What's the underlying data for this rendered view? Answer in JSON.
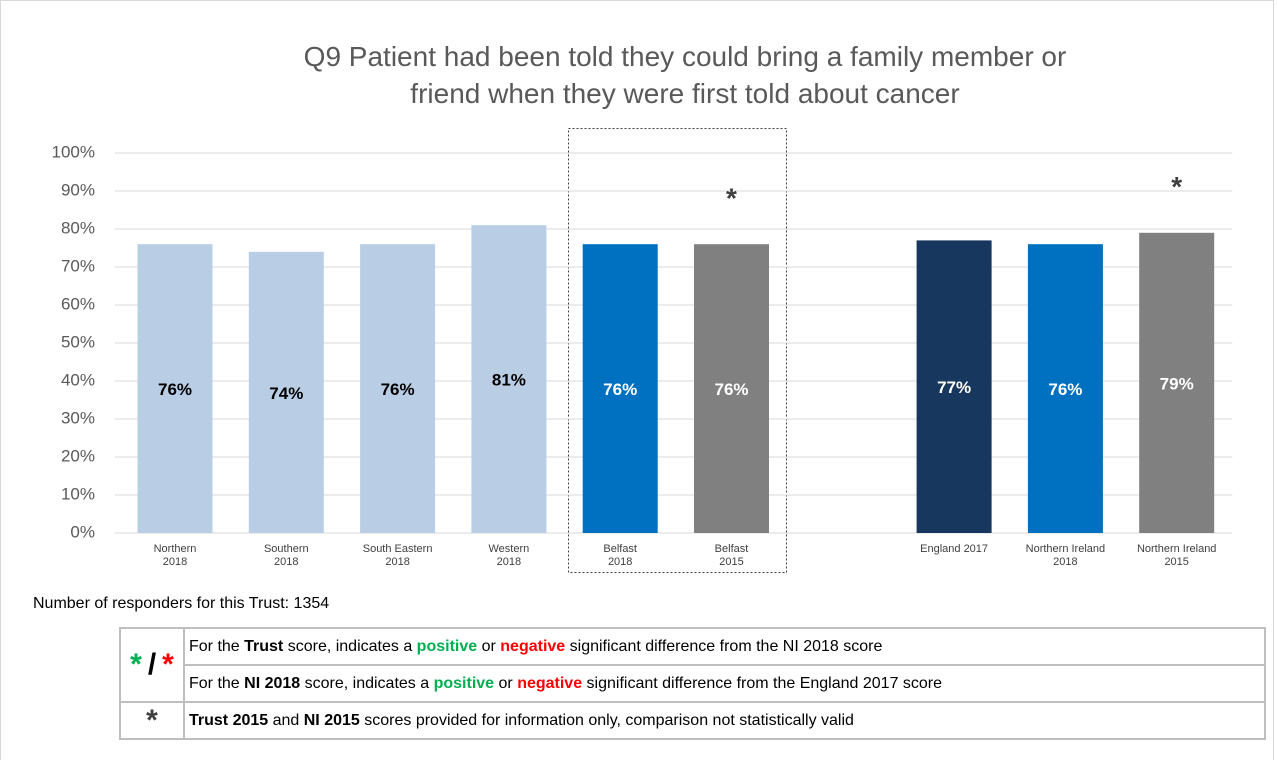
{
  "chart_data": {
    "type": "bar",
    "title": "Q9 Patient had been told they could bring a family member or\nfriend when they were first told about cancer",
    "categories": [
      "Northern\n2018",
      "Southern\n2018",
      "South Eastern\n2018",
      "Western\n2018",
      "Belfast\n2018",
      "Belfast\n2015",
      null,
      "England 2017",
      "Northern Ireland\n2018",
      "Northern Ireland\n2015"
    ],
    "values": [
      76,
      74,
      76,
      81,
      76,
      76,
      null,
      77,
      76,
      79
    ],
    "value_labels": [
      "76%",
      "74%",
      "76%",
      "81%",
      "76%",
      "76%",
      null,
      "77%",
      "76%",
      "79%"
    ],
    "colors": [
      "#b9cde5",
      "#b9cde5",
      "#b9cde5",
      "#b9cde5",
      "#0070c0",
      "#808080",
      null,
      "#17375e",
      "#0070c0",
      "#808080"
    ],
    "label_colors": [
      "#000000",
      "#000000",
      "#000000",
      "#000000",
      "#ffffff",
      "#ffffff",
      null,
      "#ffffff",
      "#ffffff",
      "#ffffff"
    ],
    "annotations": [
      null,
      null,
      null,
      null,
      null,
      "*",
      null,
      null,
      null,
      "*"
    ],
    "ylim": [
      0,
      100
    ],
    "yticks": [
      {
        "value": 0,
        "label": "0%"
      },
      {
        "value": 10,
        "label": "10%"
      },
      {
        "value": 20,
        "label": "20%"
      },
      {
        "value": 30,
        "label": "30%"
      },
      {
        "value": 40,
        "label": "40%"
      },
      {
        "value": 50,
        "label": "50%"
      },
      {
        "value": 60,
        "label": "60%"
      },
      {
        "value": 70,
        "label": "70%"
      },
      {
        "value": 80,
        "label": "80%"
      },
      {
        "value": 90,
        "label": "90%"
      },
      {
        "value": 100,
        "label": "100%"
      }
    ],
    "grid": true
  },
  "footer": "Number of responders for this Trust: 1354",
  "info_table": {
    "rows": [
      {
        "symbol": [
          {
            "text": "*",
            "color": "#00b050"
          },
          {
            "text": "/",
            "color": "#000000"
          },
          {
            "text": "*",
            "color": "#ff0000"
          }
        ],
        "lines": [
          [
            {
              "text": "For the "
            },
            {
              "text": "Trust",
              "bold": true
            },
            {
              "text": " score, indicates a "
            },
            {
              "text": "positive",
              "bold": true,
              "color": "#00b050"
            },
            {
              "text": " or "
            },
            {
              "text": "negative",
              "bold": true,
              "color": "#ff0000"
            },
            {
              "text": " significant difference from the NI 2018 score"
            }
          ],
          [
            {
              "text": "For the "
            },
            {
              "text": "NI 2018",
              "bold": true
            },
            {
              "text": " score, indicates a "
            },
            {
              "text": "positive",
              "bold": true,
              "color": "#00b050"
            },
            {
              "text": " or "
            },
            {
              "text": "negative",
              "bold": true,
              "color": "#ff0000"
            },
            {
              "text": " significant difference from the England 2017 score"
            }
          ]
        ]
      },
      {
        "symbol": [
          {
            "text": "*",
            "color": "#404040"
          }
        ],
        "lines": [
          [
            {
              "text": "Trust 2015",
              "bold": true
            },
            {
              "text": " and  "
            },
            {
              "text": "NI 2015",
              "bold": true
            },
            {
              "text": " scores provided for information only, comparison not statistically valid"
            }
          ]
        ]
      }
    ]
  }
}
